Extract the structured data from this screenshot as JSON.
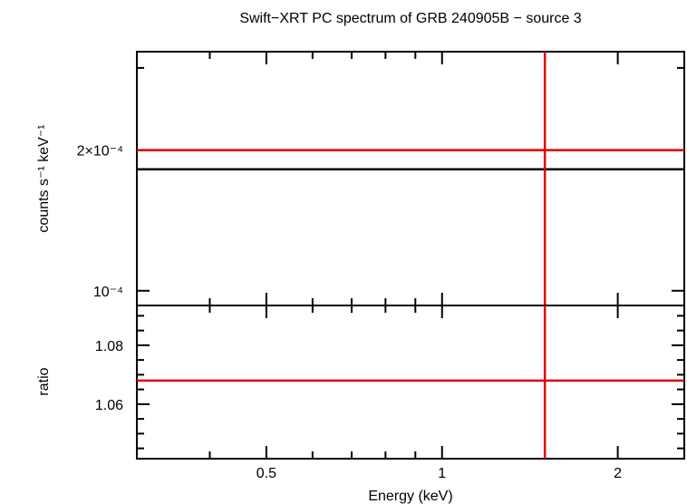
{
  "chart_data": [
    {
      "type": "line",
      "title": "Swift−XRT PC spectrum of GRB 240905B − source 3",
      "xlabel": "",
      "ylabel": "counts s⁻¹ keV⁻¹",
      "xscale": "log",
      "yscale": "log",
      "xlim": [
        0.3,
        2.6
      ],
      "ylim": [
        9.3e-05,
        0.000325
      ],
      "x_ticks_major": [
        0.5,
        1,
        2
      ],
      "y_tick_labels": [
        {
          "value": 0.0002,
          "label": "2×10⁻⁴"
        },
        {
          "value": 0.0001,
          "label": "10⁻⁴"
        }
      ],
      "series": [
        {
          "color": "#000000",
          "style": "horizontal",
          "y": 0.000182
        },
        {
          "color": "#e00000",
          "style": "horizontal",
          "y": 0.0002
        },
        {
          "color": "#e00000",
          "style": "vertical",
          "x": 1.5
        }
      ],
      "grid": false,
      "legend": "none"
    },
    {
      "type": "line",
      "title": "",
      "xlabel": "Energy (keV)",
      "ylabel": "ratio",
      "xscale": "log",
      "yscale": "linear",
      "xlim": [
        0.3,
        2.6
      ],
      "ylim": [
        1.0415,
        1.0935
      ],
      "x_ticks_major": [
        0.5,
        1,
        2
      ],
      "x_tick_labels": [
        "0.5",
        "1",
        "2"
      ],
      "y_ticks_major": [
        1.06,
        1.08
      ],
      "y_tick_labels": [
        "1.06",
        "1.08"
      ],
      "series": [
        {
          "color": "#e00000",
          "style": "horizontal",
          "y": 1.068
        },
        {
          "color": "#e00000",
          "style": "vertical",
          "x": 1.5
        }
      ],
      "grid": false,
      "legend": "none"
    }
  ]
}
